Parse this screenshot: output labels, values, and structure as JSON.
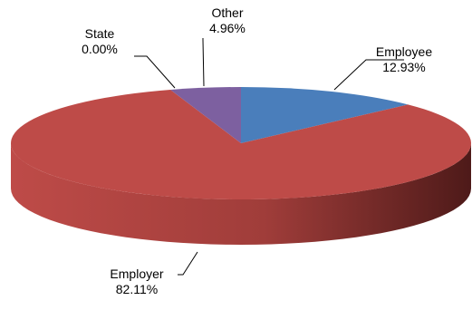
{
  "chart_data": {
    "type": "pie",
    "style": "3d",
    "slices": [
      {
        "label": "Employee",
        "value_label": "12.93%",
        "value": 12.93,
        "color": "#4A7EBB",
        "side_color": "#2E5786"
      },
      {
        "label": "Employer",
        "value_label": "82.11%",
        "value": 82.11,
        "color": "#BE4B48",
        "side_color": "#8C2F2C"
      },
      {
        "label": "State",
        "value_label": "0.00%",
        "value": 0.0,
        "color": "#9BBB59",
        "side_color": "#6E8A3B"
      },
      {
        "label": "Other",
        "value_label": "4.96%",
        "value": 4.96,
        "color": "#7D60A0",
        "side_color": "#563F72"
      }
    ],
    "legend": "none",
    "data_labels": "outside with leader lines"
  }
}
